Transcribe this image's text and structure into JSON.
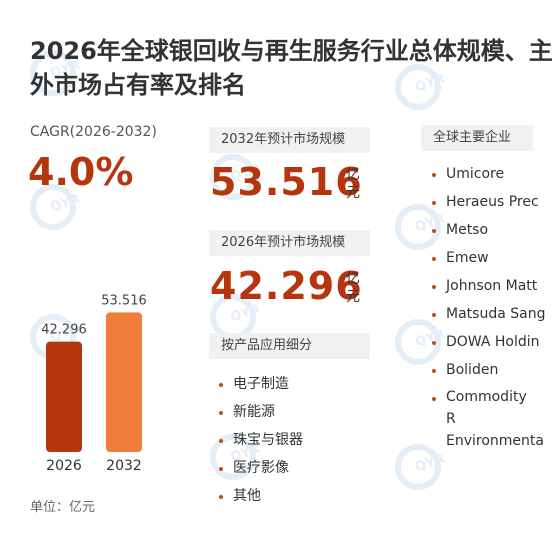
{
  "title_line1": "2026年全球银回收与再生服务行业总体规模、主",
  "title_line2": "外市场占有率及排名",
  "cagr": {
    "label": "CAGR(2026-2032)",
    "value": "4.0%"
  },
  "unit_label": "单位：亿元",
  "market_2032": {
    "label": "2032年预计市场规模",
    "value": "53.516",
    "unit": "亿元"
  },
  "market_2026": {
    "label": "2026年预计市场规模",
    "value": "42.296",
    "unit": "亿元"
  },
  "applications": {
    "label": "按产品应用细分",
    "items": [
      "电子制造",
      "新能源",
      "珠宝与银器",
      "医疗影像",
      "其他"
    ]
  },
  "companies": {
    "label": "全球主要企业",
    "items": [
      "Umicore",
      "Heraeus Prec",
      "Metso",
      "Emew",
      "Johnson Matt",
      "Matsuda Sang",
      "DOWA Holdin",
      "Boliden",
      "Commodity R Environmenta"
    ]
  },
  "colors": {
    "accent": "#b5350d",
    "bar_2026": "#b5350d",
    "bar_2032": "#f07c3a",
    "dot": "#c8491c"
  },
  "chart_data": {
    "type": "bar",
    "categories": [
      "2026",
      "2032"
    ],
    "values": [
      42.296,
      53.516
    ],
    "data_labels": [
      "42.296",
      "53.516"
    ],
    "title": "",
    "xlabel": "",
    "ylabel": "",
    "unit": "亿元",
    "ylim": [
      0,
      60
    ]
  }
}
